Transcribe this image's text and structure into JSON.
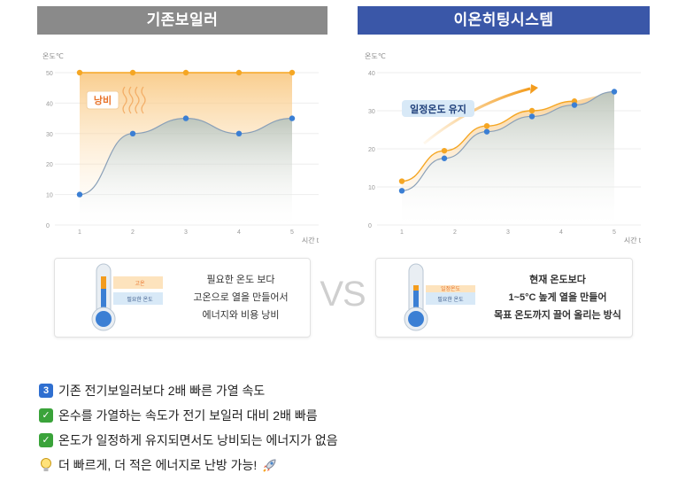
{
  "headers": {
    "left": "기존보일러",
    "right": "이온히팅시스템"
  },
  "chart_data": [
    {
      "type": "line",
      "title": "기존보일러",
      "ylabel": "온도℃",
      "xlabel": "시간 t",
      "ylim": [
        0,
        50
      ],
      "x": [
        1,
        2,
        3,
        4,
        5
      ],
      "yticks": [
        0,
        10,
        20,
        30,
        40,
        50
      ],
      "series": [
        {
          "values": [
            50,
            50,
            50,
            50,
            50
          ],
          "color": "#f5a623"
        },
        {
          "values": [
            10,
            30,
            35,
            30,
            35
          ],
          "color": "#3b7fd4"
        }
      ],
      "annotations": [
        "낭비"
      ]
    },
    {
      "type": "line",
      "title": "이온히팅시스템",
      "ylabel": "온도℃",
      "xlabel": "시간 t",
      "ylim": [
        0,
        40
      ],
      "x": [
        1,
        2,
        3,
        4,
        5
      ],
      "yticks": [
        0,
        10,
        20,
        30,
        40
      ],
      "series": [
        {
          "values": [
            11.5,
            19.5,
            26,
            30,
            32.5
          ],
          "color": "#f5a623",
          "x": [
            1,
            1.8,
            2.6,
            3.45,
            4.25
          ]
        },
        {
          "values": [
            9,
            17.5,
            24.5,
            28.5,
            31.5,
            35
          ],
          "color": "#3b7fd4",
          "x": [
            1,
            1.8,
            2.6,
            3.45,
            4.25,
            5
          ]
        }
      ],
      "annotations": [
        "일정온도 유지"
      ]
    }
  ],
  "left_box": {
    "thermo_high": "고온",
    "thermo_need": "필요한 온도",
    "lines": [
      "필요한 온도 보다",
      "고온으로 열을 만들어서",
      "에너지와 비용 낭비"
    ]
  },
  "right_box": {
    "thermo_high": "일정온도",
    "thermo_need": "필요한 온도",
    "lines": [
      "현재 온도보다",
      "1~5°C 높게 열을 만들어",
      "목표 온도까지 끌어 올리는 방식"
    ]
  },
  "vs": "VS",
  "notes": [
    {
      "badge": "3",
      "text": "기존 전기보일러보다 2배 빠른 가열 속도",
      "badge_color": "#2f6fd0"
    },
    {
      "badge": "✓",
      "text": "온수를 가열하는 속도가 전기 보일러 대비 2배 빠름",
      "badge_color": "#3aa33a"
    },
    {
      "badge": "✓",
      "text": "온도가 일정하게 유지되면서도 낭비되는 에너지가 없음",
      "badge_color": "#3aa33a"
    },
    {
      "icon": "lightbulb-icon",
      "text": "더 빠르게, 더 적은 에너지로 난방 가능!",
      "end_icon": "rocket-icon"
    }
  ]
}
